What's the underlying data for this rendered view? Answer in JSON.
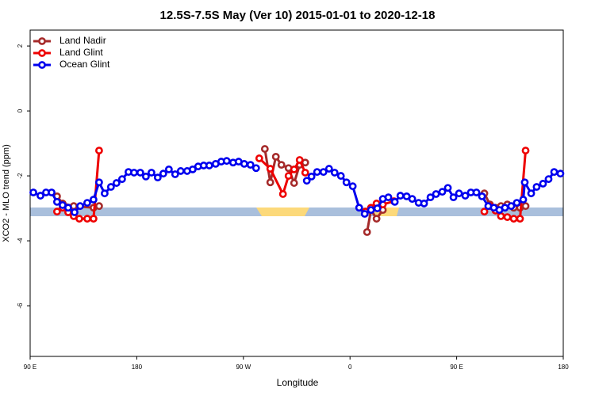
{
  "chart_data": {
    "type": "line",
    "title": "12.5S-7.5S May (Ver 10)   2015-01-01 to 2020-12-18",
    "x_label": "Longitude",
    "y_label": "XCO2 - MLO trend (ppm)",
    "xlim": [
      90,
      540
    ],
    "ylim": [
      -7.56,
      2.49
    ],
    "xticks": [
      {
        "value": 90,
        "label": "90 E"
      },
      180,
      {
        "value": 270,
        "label": "90 W"
      },
      {
        "value": 360,
        "label": "0"
      },
      {
        "value": 450,
        "label": "90 E"
      },
      {
        "value": 540,
        "label": "180"
      }
    ],
    "yticks": [
      2,
      0,
      -2,
      -4,
      -6
    ],
    "legend": "top-left",
    "series": [
      {
        "name": "Land Nadir",
        "color": "#a52a2a",
        "x": [
          112.7,
          117.4,
          126.8,
          143.5,
          148.2,
          null,
          288.1,
          292.7,
          297.4,
          302.1,
          308.1,
          312.8,
          317.5,
          322.2,
          null,
          374.4,
          377.7,
          382.4,
          387.7,
          null,
          473.4,
          478.1,
          482.8,
          487.4,
          492.8,
          498.2,
          503.5,
          508.2
        ],
        "values": [
          -2.63,
          -2.85,
          -2.93,
          -2.98,
          -2.93,
          null,
          -1.17,
          -2.2,
          -1.41,
          -1.66,
          -1.76,
          -2.22,
          -1.66,
          -1.59,
          null,
          -3.73,
          -3.05,
          -3.32,
          -3.05,
          null,
          -2.54,
          -2.88,
          -2.98,
          -2.93,
          -2.88,
          -2.98,
          -2.98,
          -2.93
        ]
      },
      {
        "name": "Land Glint",
        "color": "#ee0000",
        "x": [
          112.7,
          117.4,
          122.1,
          126.8,
          131.5,
          138.2,
          143.5,
          148.2,
          null,
          283.4,
          292.7,
          303.4,
          308.1,
          312.8,
          317.5,
          322.2,
          null,
          373,
          377.7,
          382.4,
          387.7,
          397.1,
          null,
          473.4,
          478.1,
          482.8,
          487.4,
          492.8,
          498.2,
          503.5,
          508.2
        ],
        "values": [
          -3.1,
          -2.98,
          -3.12,
          -3.24,
          -3.32,
          -3.32,
          -3.32,
          -1.22,
          null,
          -1.46,
          -1.78,
          -2.56,
          -2.0,
          -1.8,
          -1.51,
          -1.9,
          null,
          -3.1,
          -2.98,
          -2.85,
          -2.88,
          -2.78,
          null,
          -3.1,
          -2.93,
          -3.07,
          -3.24,
          -3.27,
          -3.32,
          -3.32,
          -1.22
        ]
      },
      {
        "name": "Ocean Glint",
        "color": "#0000ee",
        "x": [
          92.7,
          98.7,
          103.4,
          108.1,
          112.7,
          117.4,
          122.1,
          127.5,
          132.2,
          138.2,
          143.5,
          148.2,
          152.9,
          158.2,
          162.9,
          167.6,
          173,
          177.7,
          183,
          187.7,
          192.4,
          197.7,
          202.4,
          207.1,
          212.4,
          217.1,
          222.5,
          227.2,
          231.8,
          236.5,
          241.2,
          246.6,
          251.3,
          255.9,
          261.3,
          266,
          270.7,
          276,
          280.7,
          null,
          323.5,
          327.5,
          332.2,
          337.6,
          342.3,
          347,
          352.3,
          357,
          362.3,
          367.7,
          372.4,
          377.7,
          383.1,
          387.7,
          392.4,
          397.8,
          402.5,
          407.8,
          412.5,
          417.9,
          422.5,
          427.9,
          432.6,
          437.9,
          442.6,
          447.3,
          452,
          457.3,
          462,
          466.7,
          471.4,
          476.7,
          481.4,
          486.1,
          490.8,
          496.1,
          500.8,
          506.2,
          507.5,
          512.9,
          517.5,
          522.9,
          527.6,
          532.3,
          537.6
        ],
        "values": [
          -2.51,
          -2.61,
          -2.51,
          -2.51,
          -2.8,
          -2.9,
          -2.98,
          -3.12,
          -2.93,
          -2.83,
          -2.73,
          -2.2,
          -2.54,
          -2.34,
          -2.22,
          -2.1,
          -1.88,
          -1.9,
          -1.9,
          -2.02,
          -1.9,
          -2.05,
          -1.93,
          -1.8,
          -1.95,
          -1.85,
          -1.85,
          -1.8,
          -1.71,
          -1.68,
          -1.68,
          -1.63,
          -1.56,
          -1.54,
          -1.59,
          -1.56,
          -1.63,
          -1.66,
          -1.76,
          null,
          -2.15,
          -2.02,
          -1.88,
          -1.88,
          -1.78,
          -1.9,
          -2.0,
          -2.2,
          -2.32,
          -2.98,
          -3.17,
          -3.05,
          -3.0,
          -2.71,
          -2.66,
          -2.8,
          -2.61,
          -2.63,
          -2.71,
          -2.83,
          -2.85,
          -2.66,
          -2.56,
          -2.49,
          -2.37,
          -2.66,
          -2.54,
          -2.61,
          -2.51,
          -2.51,
          -2.63,
          -2.93,
          -2.98,
          -3.05,
          -2.98,
          -2.93,
          -2.83,
          -2.73,
          -2.2,
          -2.54,
          -2.34,
          -2.24,
          -2.1,
          -1.88,
          -1.93
        ]
      }
    ]
  }
}
